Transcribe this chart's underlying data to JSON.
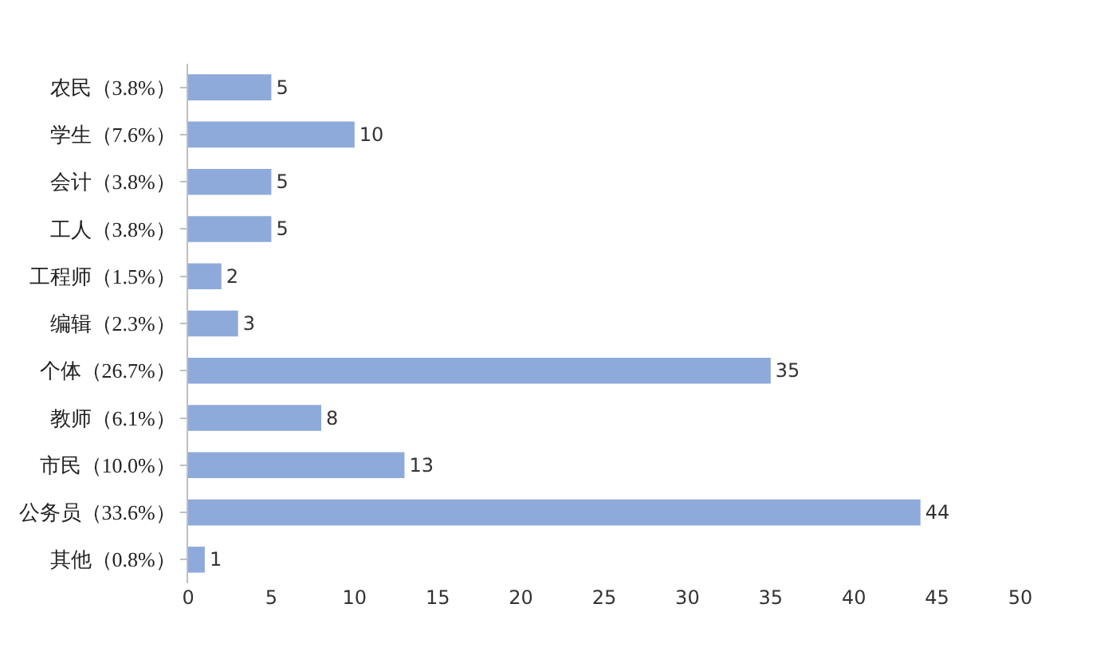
{
  "chart_data": {
    "type": "bar",
    "orientation": "horizontal",
    "categories": [
      "农民（3.8%）",
      "学生（7.6%）",
      "会计（3.8%）",
      "工人（3.8%）",
      "工程师（1.5%）",
      "编辑（2.3%）",
      "个体（26.7%）",
      "教师（6.1%）",
      "市民（10.0%）",
      "公务员（33.6%）",
      "其他（0.8%）"
    ],
    "values": [
      5,
      10,
      5,
      5,
      2,
      3,
      35,
      8,
      13,
      44,
      1
    ],
    "color": "#8eaadb",
    "xlim": [
      0,
      50
    ],
    "xticks": [
      0,
      5,
      10,
      15,
      20,
      25,
      30,
      35,
      40,
      45,
      50
    ],
    "grid": false,
    "data_labels": true
  }
}
